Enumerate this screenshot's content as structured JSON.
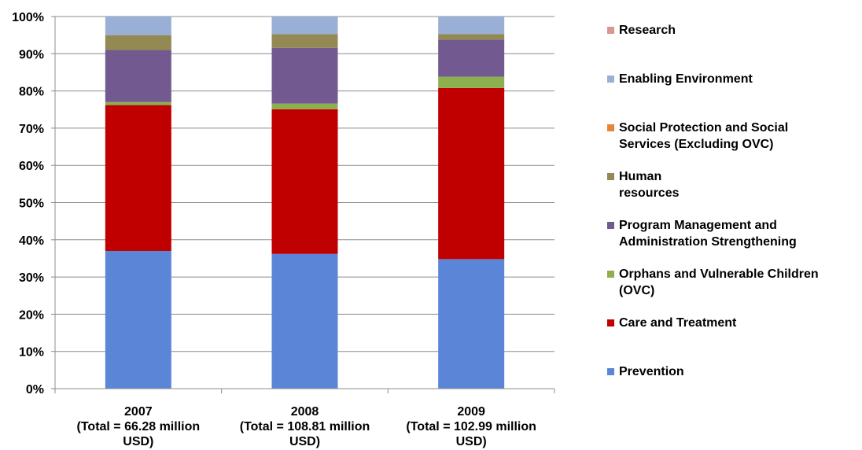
{
  "chart_data": {
    "type": "bar",
    "stacked": true,
    "percent_stacked": true,
    "categories": [
      "2007\n(Total = 66.28 million\nUSD)",
      "2008\n(Total = 108.81 million\nUSD)",
      "2009\n(Total = 102.99 million\nUSD)"
    ],
    "ylim": [
      0,
      100
    ],
    "yticks": [
      "0%",
      "10%",
      "20%",
      "30%",
      "40%",
      "50%",
      "60%",
      "70%",
      "80%",
      "90%",
      "100%"
    ],
    "grid": true,
    "legend_position": "right",
    "series": [
      {
        "name": "Prevention",
        "color": "#5B86D8",
        "values": [
          37.0,
          36.2,
          34.8
        ]
      },
      {
        "name": "Care and Treatment",
        "color": "#C00000",
        "values": [
          39.2,
          38.9,
          46.0
        ]
      },
      {
        "name": "Orphans and Vulnerable Children\n(OVC)",
        "color": "#8DB04F",
        "values": [
          0.8,
          1.5,
          3.0
        ]
      },
      {
        "name": "Program Management and\nAdministration Strengthening",
        "color": "#725A90",
        "values": [
          14.0,
          15.0,
          10.0
        ]
      },
      {
        "name": "Human\nresources",
        "color": "#938953",
        "values": [
          4.0,
          3.7,
          1.5
        ]
      },
      {
        "name": "Social Protection and Social\nServices (Excluding OVC)",
        "color": "#E6863A",
        "values": [
          0,
          0,
          0
        ]
      },
      {
        "name": "Enabling Environment",
        "color": "#9AAFD6",
        "values": [
          5.0,
          4.7,
          4.7
        ]
      },
      {
        "name": "Research",
        "color": "#D99694",
        "values": [
          0,
          0,
          0
        ]
      }
    ]
  }
}
